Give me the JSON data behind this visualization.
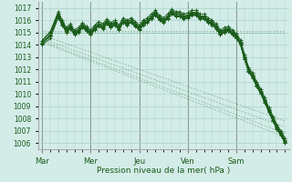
{
  "title": "Pression niveau de la mer( hPa )",
  "bg_color": "#d4ece8",
  "grid_color": "#a8d4c8",
  "line_color": "#1a5c1a",
  "ylim": [
    1005.5,
    1017.5
  ],
  "yticks": [
    1006,
    1007,
    1008,
    1009,
    1010,
    1011,
    1012,
    1013,
    1014,
    1015,
    1016,
    1017
  ],
  "day_labels": [
    "Mar",
    "Mer",
    "Jeu",
    "Ven",
    "Sam"
  ],
  "day_positions": [
    0,
    24,
    48,
    72,
    96
  ],
  "xlim": [
    -2,
    122
  ],
  "smooth_lines": [
    {
      "x0": 0,
      "y0": 1015.0,
      "x1": 120,
      "y1": 1007.5
    },
    {
      "x0": 0,
      "y0": 1014.8,
      "x1": 120,
      "y1": 1007.2
    },
    {
      "x0": 0,
      "y0": 1014.5,
      "x1": 120,
      "y1": 1006.8
    },
    {
      "x0": 0,
      "y0": 1014.3,
      "x1": 120,
      "y1": 1006.5
    },
    {
      "x0": 0,
      "y0": 1014.8,
      "x1": 120,
      "y1": 1015.0
    },
    {
      "x0": 0,
      "y0": 1015.0,
      "x1": 120,
      "y1": 1015.2
    }
  ],
  "jagged_series": [
    {
      "x": [
        0,
        4,
        8,
        10,
        12,
        14,
        16,
        18,
        20,
        22,
        24,
        26,
        28,
        30,
        32,
        34,
        36,
        38,
        40,
        42,
        44,
        46,
        48,
        50,
        52,
        54,
        56,
        58,
        60,
        62,
        64,
        66,
        68,
        70,
        72,
        74,
        76,
        78,
        80,
        82,
        84,
        86,
        88,
        90,
        92,
        94,
        96,
        98,
        100,
        102,
        104,
        106,
        108,
        110,
        112,
        114,
        116,
        118,
        120
      ],
      "y": [
        1014.2,
        1014.8,
        1016.5,
        1015.8,
        1015.2,
        1015.5,
        1015.0,
        1015.2,
        1015.6,
        1015.3,
        1015.0,
        1015.4,
        1015.7,
        1015.5,
        1015.9,
        1015.6,
        1015.8,
        1015.4,
        1016.0,
        1015.8,
        1016.0,
        1015.7,
        1015.4,
        1015.8,
        1016.0,
        1016.3,
        1016.6,
        1016.2,
        1016.0,
        1016.3,
        1016.7,
        1016.5,
        1016.5,
        1016.3,
        1016.4,
        1016.6,
        1016.6,
        1016.3,
        1016.3,
        1016.0,
        1015.8,
        1015.5,
        1015.0,
        1015.2,
        1015.3,
        1015.0,
        1014.7,
        1014.2,
        1013.0,
        1012.0,
        1011.5,
        1010.8,
        1010.2,
        1009.5,
        1008.7,
        1008.0,
        1007.3,
        1006.8,
        1006.2
      ],
      "marker": "+"
    },
    {
      "x": [
        0,
        4,
        8,
        10,
        12,
        14,
        16,
        18,
        20,
        22,
        24,
        26,
        28,
        30,
        32,
        34,
        36,
        38,
        40,
        42,
        44,
        46,
        48,
        50,
        52,
        54,
        56,
        58,
        60,
        62,
        64,
        66,
        68,
        70,
        72,
        74,
        76,
        78,
        80,
        82,
        84,
        86,
        88,
        90,
        92,
        94,
        96,
        98,
        100,
        102,
        104,
        106,
        108,
        110,
        112,
        114,
        116,
        118,
        120
      ],
      "y": [
        1014.0,
        1014.5,
        1016.2,
        1015.6,
        1015.0,
        1015.3,
        1014.8,
        1015.0,
        1015.4,
        1015.1,
        1014.8,
        1015.2,
        1015.5,
        1015.3,
        1015.7,
        1015.4,
        1015.6,
        1015.2,
        1015.8,
        1015.6,
        1015.8,
        1015.5,
        1015.2,
        1015.6,
        1015.8,
        1016.1,
        1016.4,
        1016.0,
        1015.8,
        1016.1,
        1016.5,
        1016.3,
        1016.3,
        1016.1,
        1016.2,
        1016.4,
        1016.4,
        1016.1,
        1016.1,
        1015.8,
        1015.6,
        1015.3,
        1014.8,
        1015.0,
        1015.1,
        1014.8,
        1014.5,
        1014.0,
        1012.8,
        1011.8,
        1011.3,
        1010.6,
        1010.0,
        1009.3,
        1008.5,
        1007.8,
        1007.1,
        1006.6,
        1006.0
      ],
      "marker": "+"
    },
    {
      "x": [
        0,
        4,
        8,
        10,
        12,
        14,
        16,
        18,
        20,
        22,
        24,
        26,
        28,
        30,
        32,
        34,
        36,
        38,
        40,
        42,
        44,
        46,
        48,
        50,
        52,
        54,
        56,
        58,
        60,
        62,
        64,
        66,
        68,
        70,
        72,
        74,
        76,
        78,
        80,
        82,
        84,
        86,
        88,
        90,
        92,
        94,
        96,
        98,
        100,
        102,
        104,
        106,
        108,
        110,
        112,
        114,
        116,
        118,
        120
      ],
      "y": [
        1014.3,
        1015.0,
        1016.7,
        1016.0,
        1015.4,
        1015.7,
        1015.2,
        1015.4,
        1015.8,
        1015.5,
        1015.2,
        1015.6,
        1015.9,
        1015.7,
        1016.1,
        1015.8,
        1016.0,
        1015.6,
        1016.2,
        1016.0,
        1016.2,
        1015.9,
        1015.6,
        1016.0,
        1016.2,
        1016.5,
        1016.8,
        1016.4,
        1016.2,
        1016.5,
        1016.9,
        1016.7,
        1016.7,
        1016.5,
        1016.6,
        1016.8,
        1016.8,
        1016.5,
        1016.5,
        1016.2,
        1016.0,
        1015.7,
        1015.2,
        1015.4,
        1015.5,
        1015.2,
        1014.9,
        1014.4,
        1013.2,
        1012.2,
        1011.7,
        1011.0,
        1010.4,
        1009.7,
        1008.9,
        1008.2,
        1007.5,
        1007.0,
        1006.4
      ],
      "marker": "+"
    },
    {
      "x": [
        0,
        4,
        8,
        10,
        12,
        14,
        16,
        18,
        20,
        22,
        24,
        26,
        28,
        30,
        32,
        34,
        36,
        38,
        40,
        42,
        44,
        46,
        48,
        50,
        52,
        54,
        56,
        58,
        60,
        62,
        64,
        66,
        68,
        70,
        72,
        74,
        76,
        78,
        80,
        82,
        84,
        86,
        88,
        90,
        92,
        94,
        96,
        98,
        100,
        102,
        104,
        106,
        108,
        110,
        112,
        114,
        116,
        118,
        120
      ],
      "y": [
        1014.1,
        1014.7,
        1016.4,
        1015.7,
        1015.1,
        1015.4,
        1014.9,
        1015.1,
        1015.5,
        1015.2,
        1014.9,
        1015.3,
        1015.6,
        1015.4,
        1015.8,
        1015.5,
        1015.7,
        1015.3,
        1015.9,
        1015.7,
        1015.9,
        1015.6,
        1015.3,
        1015.7,
        1015.9,
        1016.2,
        1016.5,
        1016.1,
        1015.9,
        1016.2,
        1016.6,
        1016.4,
        1016.4,
        1016.2,
        1016.3,
        1016.5,
        1016.5,
        1016.2,
        1016.2,
        1015.9,
        1015.7,
        1015.4,
        1014.9,
        1015.1,
        1015.2,
        1014.9,
        1014.6,
        1014.1,
        1012.9,
        1011.9,
        1011.4,
        1010.7,
        1010.1,
        1009.4,
        1008.6,
        1007.9,
        1007.2,
        1006.7,
        1006.1
      ],
      "marker": "+"
    },
    {
      "x": [
        0,
        4,
        8,
        10,
        12,
        14,
        16,
        18,
        20,
        22,
        24,
        26,
        28,
        30,
        32,
        34,
        36,
        38,
        40,
        42,
        44,
        46,
        48,
        50,
        52,
        54,
        56,
        58,
        60,
        62,
        64,
        66,
        68,
        70,
        72,
        74,
        76,
        78,
        80,
        82,
        84,
        86,
        88,
        90,
        92,
        94,
        96,
        98,
        100,
        102,
        104,
        106,
        108,
        110,
        112,
        114,
        116,
        118,
        120
      ],
      "y": [
        1014.35,
        1015.05,
        1016.55,
        1015.85,
        1015.25,
        1015.55,
        1015.05,
        1015.25,
        1015.65,
        1015.35,
        1015.05,
        1015.45,
        1015.75,
        1015.55,
        1015.95,
        1015.65,
        1015.85,
        1015.45,
        1016.05,
        1015.85,
        1016.05,
        1015.75,
        1015.45,
        1015.85,
        1016.05,
        1016.35,
        1016.65,
        1016.25,
        1016.05,
        1016.35,
        1016.75,
        1016.55,
        1016.55,
        1016.35,
        1016.45,
        1016.65,
        1016.65,
        1016.35,
        1016.35,
        1016.05,
        1015.85,
        1015.55,
        1015.05,
        1015.25,
        1015.35,
        1015.05,
        1014.75,
        1014.25,
        1013.05,
        1012.05,
        1011.55,
        1010.85,
        1010.25,
        1009.55,
        1008.75,
        1008.05,
        1007.35,
        1006.85,
        1006.25
      ],
      "marker": "+"
    },
    {
      "x": [
        0,
        4,
        8,
        10,
        12,
        14,
        16,
        18,
        20,
        22,
        24,
        26,
        28,
        30,
        32,
        34,
        36,
        38,
        40,
        42,
        44,
        46,
        48,
        50,
        52,
        54,
        56,
        58,
        60,
        62,
        64,
        66,
        68,
        70,
        72,
        74,
        76,
        78,
        80,
        82,
        84,
        86,
        88,
        90,
        92,
        94,
        96,
        98,
        100,
        102,
        104,
        106,
        108,
        110,
        112,
        114,
        116,
        118,
        120
      ],
      "y": [
        1014.15,
        1014.75,
        1016.35,
        1015.65,
        1015.05,
        1015.35,
        1014.85,
        1015.05,
        1015.45,
        1015.15,
        1014.85,
        1015.25,
        1015.55,
        1015.35,
        1015.75,
        1015.45,
        1015.65,
        1015.25,
        1015.85,
        1015.65,
        1015.85,
        1015.55,
        1015.25,
        1015.65,
        1015.85,
        1016.15,
        1016.45,
        1016.05,
        1015.85,
        1016.15,
        1016.55,
        1016.35,
        1016.35,
        1016.15,
        1016.25,
        1016.45,
        1016.45,
        1016.15,
        1016.15,
        1015.85,
        1015.65,
        1015.35,
        1014.85,
        1015.05,
        1015.15,
        1014.85,
        1014.55,
        1014.05,
        1012.85,
        1011.85,
        1011.35,
        1010.65,
        1010.05,
        1009.35,
        1008.55,
        1007.85,
        1007.15,
        1006.65,
        1006.05
      ],
      "marker": "+"
    }
  ]
}
